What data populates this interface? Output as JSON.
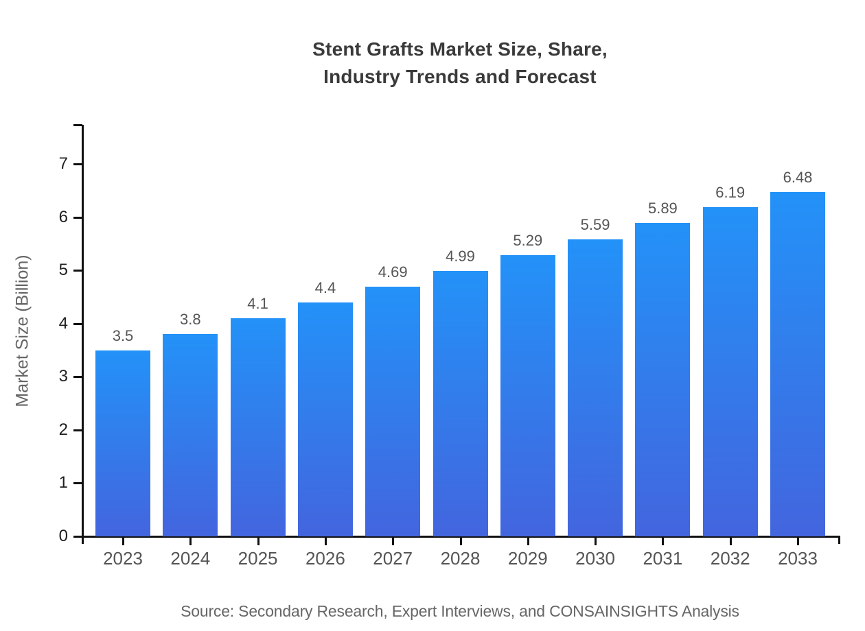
{
  "chart_data": {
    "type": "bar",
    "title": "Stent Grafts Market Size, Share,\nIndustry Trends and Forecast",
    "categories": [
      "2023",
      "2024",
      "2025",
      "2026",
      "2027",
      "2028",
      "2029",
      "2030",
      "2031",
      "2032",
      "2033"
    ],
    "values": [
      3.5,
      3.8,
      4.1,
      4.4,
      4.69,
      4.99,
      5.29,
      5.59,
      5.89,
      6.19,
      6.48
    ],
    "xlabel": "",
    "ylabel": "Market Size (Billion)",
    "ylim": [
      0,
      7.74
    ],
    "yticks": [
      0,
      1,
      2,
      3,
      4,
      5,
      6,
      7
    ],
    "grid": false,
    "legend_position": "none",
    "source": "Source: Secondary Research, Expert Interviews, and CONSAINSIGHTS Analysis",
    "colors": {
      "bar_gradient_top": "#2392f8",
      "bar_gradient_bottom": "#4365de",
      "axis": "#111111",
      "title_text": "#3a3a3a",
      "tick_text": "#1f1f1f",
      "category_text": "#555555",
      "value_label_text": "#555555",
      "muted_text": "#666666",
      "background": "#ffffff"
    }
  }
}
